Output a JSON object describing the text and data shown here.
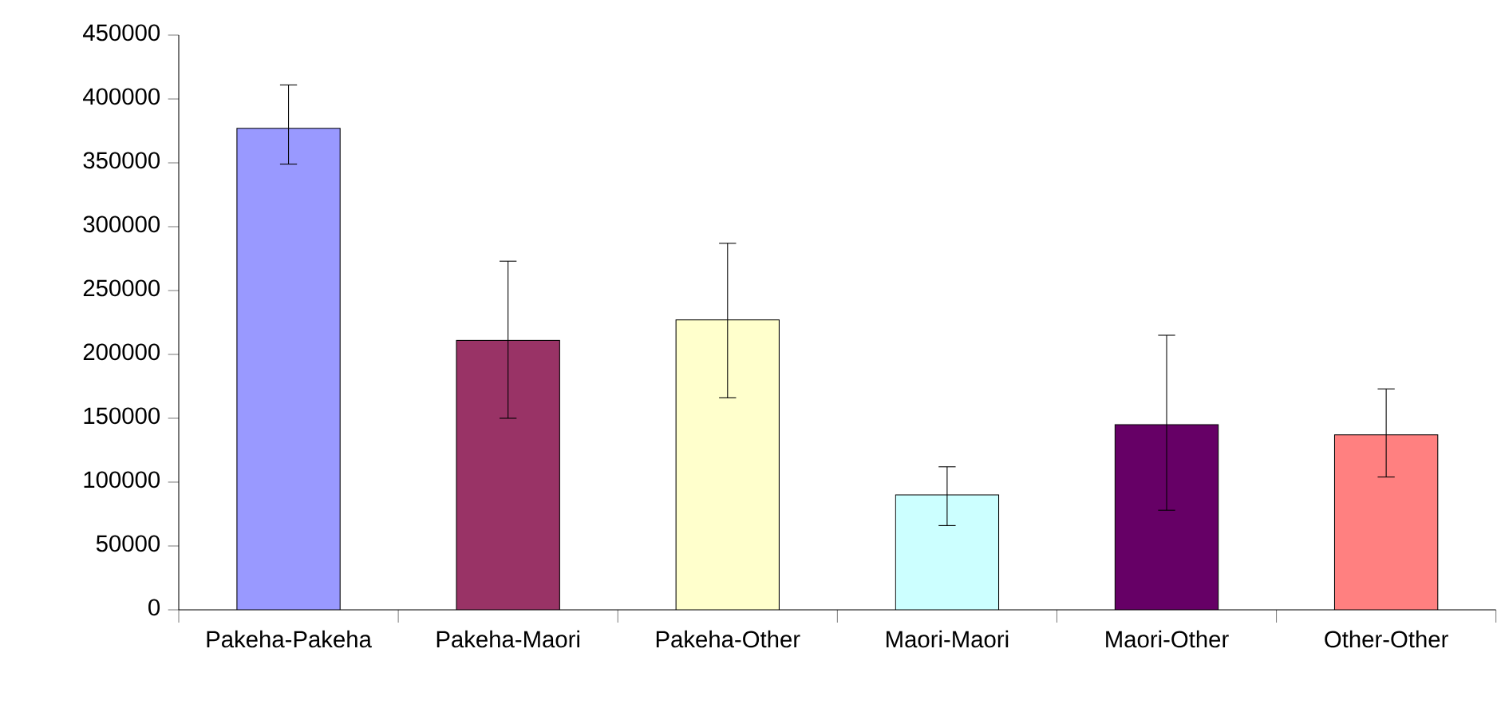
{
  "chart_data": {
    "type": "bar",
    "categories": [
      "Pakeha-Pakeha",
      "Pakeha-Maori",
      "Pakeha-Other",
      "Maori-Maori",
      "Maori-Other",
      "Other-Other"
    ],
    "values": [
      377000,
      211000,
      227000,
      90000,
      145000,
      137000
    ],
    "errors": [
      [
        349000,
        411000
      ],
      [
        150000,
        273000
      ],
      [
        166000,
        287000
      ],
      [
        66000,
        112000
      ],
      [
        78000,
        215000
      ],
      [
        104000,
        173000
      ]
    ],
    "colors": [
      "#9999ff",
      "#993366",
      "#ffffcc",
      "#ccffff",
      "#660066",
      "#ff8080"
    ],
    "ylim": [
      0,
      450000
    ],
    "yticks": [
      0,
      50000,
      100000,
      150000,
      200000,
      250000,
      300000,
      350000,
      400000,
      450000
    ],
    "grid": false
  }
}
